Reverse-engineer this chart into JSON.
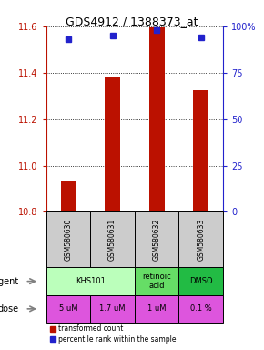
{
  "title": "GDS4912 / 1388373_at",
  "samples": [
    "GSM580630",
    "GSM580631",
    "GSM580632",
    "GSM580633"
  ],
  "transformed_counts": [
    10.93,
    11.385,
    11.595,
    11.325
  ],
  "percentile_ranks": [
    93,
    95,
    98,
    94
  ],
  "ylim_left": [
    10.8,
    11.6
  ],
  "ylim_right": [
    0,
    100
  ],
  "yticks_left": [
    10.8,
    11.0,
    11.2,
    11.4,
    11.6
  ],
  "yticks_right": [
    0,
    25,
    50,
    75,
    100
  ],
  "ytick_labels_right": [
    "0",
    "25",
    "50",
    "75",
    "100%"
  ],
  "bar_color": "#bb1100",
  "dot_color": "#2222cc",
  "agent_data": [
    {
      "cols": [
        0,
        1
      ],
      "label": "KHS101",
      "color": "#bbffbb"
    },
    {
      "cols": [
        2
      ],
      "label": "retinoic\nacid",
      "color": "#66dd66"
    },
    {
      "cols": [
        3
      ],
      "label": "DMSO",
      "color": "#22bb44"
    }
  ],
  "dose_labels": [
    "5 uM",
    "1.7 uM",
    "1 uM",
    "0.1 %"
  ],
  "dose_color": "#dd55dd",
  "sample_bg_color": "#cccccc",
  "grid_color": "black",
  "grid_linestyle": "dotted",
  "n_samples": 4,
  "bar_width": 0.35
}
